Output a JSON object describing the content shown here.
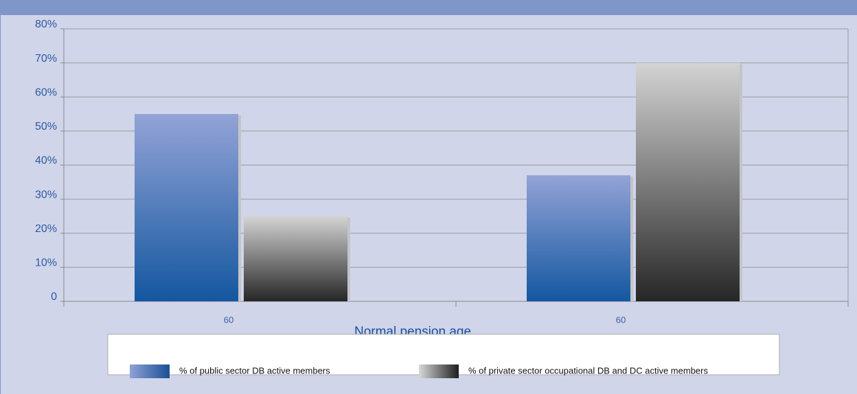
{
  "chart_data": {
    "type": "bar",
    "x_label": "Normal pension age",
    "categories": [
      "60",
      "60"
    ],
    "series": [
      {
        "name": "% of public sector DB active members",
        "color": "#3f6aae",
        "values": [
          55,
          37
        ]
      },
      {
        "name": "% of private sector occupational DB and DC active members",
        "color": "#7a7a7a",
        "values": [
          25,
          70
        ]
      }
    ],
    "ylim": [
      0,
      80
    ],
    "yticks": [
      0,
      {
        "value": 10,
        "label": "10%"
      },
      {
        "value": 20,
        "label": "20%"
      },
      {
        "value": 30,
        "label": "30%"
      },
      {
        "value": 40,
        "label": "40%"
      },
      {
        "value": 50,
        "label": "50%"
      },
      {
        "value": 60,
        "label": "60%"
      },
      {
        "value": 70,
        "label": "70%"
      },
      {
        "value": 80,
        "label": "80%"
      }
    ],
    "grid": true
  }
}
